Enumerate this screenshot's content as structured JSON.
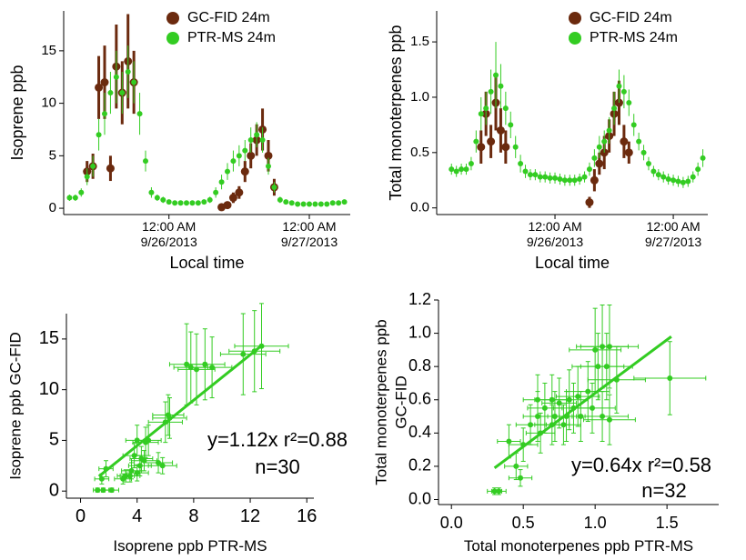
{
  "chart_data": [
    {
      "type": "scatter",
      "ylabel": "Isoprene ppb",
      "xlabel": "Local time",
      "xlim": [
        "2013-09-25T06:00",
        "2013-09-27T07:00"
      ],
      "xticks": [
        {
          "value": "2013-09-26T00:00",
          "label": [
            "12:00 AM",
            "9/26/2013"
          ]
        },
        {
          "value": "2013-09-27T00:00",
          "label": [
            "12:00 AM",
            "9/27/2013"
          ]
        }
      ],
      "ylim": [
        -0.6,
        18.8
      ],
      "yticks": [
        0,
        5,
        10,
        15
      ],
      "legend": "top-right",
      "series": [
        {
          "name": "GC-FID 24m",
          "color": "#6b2a0e",
          "x": [
            "2013-09-25T10:00",
            "2013-09-25T11:00",
            "2013-09-25T12:00",
            "2013-09-25T13:00",
            "2013-09-25T14:00",
            "2013-09-25T15:00",
            "2013-09-25T16:00",
            "2013-09-25T17:00",
            "2013-09-25T18:00",
            "2013-09-26T09:00",
            "2013-09-26T10:00",
            "2013-09-26T11:00",
            "2013-09-26T12:00",
            "2013-09-26T13:00",
            "2013-09-26T14:00",
            "2013-09-26T15:00",
            "2013-09-26T16:00",
            "2013-09-26T17:00",
            "2013-09-26T18:00"
          ],
          "values": [
            3.5,
            4.0,
            11.5,
            12.0,
            3.8,
            13.5,
            11.0,
            14.0,
            12.0,
            0.1,
            0.3,
            1.0,
            1.5,
            3.5,
            5.0,
            6.5,
            7.5,
            5.0,
            2.0
          ],
          "errors": [
            1,
            1.2,
            3,
            3.5,
            1.2,
            4,
            3,
            4.5,
            3,
            0.2,
            0.3,
            0.5,
            0.6,
            1,
            1.2,
            1.5,
            2,
            1.5,
            0.8
          ]
        },
        {
          "name": "PTR-MS 24m",
          "color": "#33cc22",
          "x": [
            "2013-09-25T07:00",
            "2013-09-25T08:00",
            "2013-09-25T09:00",
            "2013-09-25T10:00",
            "2013-09-25T11:00",
            "2013-09-25T12:00",
            "2013-09-25T13:00",
            "2013-09-25T14:00",
            "2013-09-25T15:00",
            "2013-09-25T16:00",
            "2013-09-25T17:00",
            "2013-09-25T18:00",
            "2013-09-25T19:00",
            "2013-09-25T20:00",
            "2013-09-25T21:00",
            "2013-09-25T22:00",
            "2013-09-25T23:00",
            "2013-09-26T00:00",
            "2013-09-26T01:00",
            "2013-09-26T02:00",
            "2013-09-26T03:00",
            "2013-09-26T04:00",
            "2013-09-26T05:00",
            "2013-09-26T06:00",
            "2013-09-26T07:00",
            "2013-09-26T08:00",
            "2013-09-26T09:00",
            "2013-09-26T10:00",
            "2013-09-26T11:00",
            "2013-09-26T12:00",
            "2013-09-26T13:00",
            "2013-09-26T14:00",
            "2013-09-26T15:00",
            "2013-09-26T16:00",
            "2013-09-26T17:00",
            "2013-09-26T18:00",
            "2013-09-26T19:00",
            "2013-09-26T20:00",
            "2013-09-26T21:00",
            "2013-09-26T22:00",
            "2013-09-26T23:00",
            "2013-09-27T00:00",
            "2013-09-27T01:00",
            "2013-09-27T02:00",
            "2013-09-27T03:00",
            "2013-09-27T04:00",
            "2013-09-27T05:00",
            "2013-09-27T06:00"
          ],
          "values": [
            1.0,
            1.0,
            1.5,
            3.0,
            4,
            7,
            9,
            11,
            12.5,
            11,
            13,
            12,
            9,
            4.5,
            1.5,
            1.0,
            0.8,
            0.6,
            0.5,
            0.5,
            0.5,
            0.5,
            0.5,
            0.6,
            0.8,
            1.5,
            2.5,
            3.5,
            4.5,
            5,
            5.5,
            6.5,
            7.0,
            6.5,
            4.0,
            2.0,
            0.8,
            0.6,
            0.5,
            0.4,
            0.4,
            0.4,
            0.4,
            0.4,
            0.4,
            0.5,
            0.5,
            0.6
          ],
          "errors": [
            0.3,
            0.3,
            0.4,
            0.8,
            1,
            1.5,
            2,
            2,
            2.5,
            2,
            2.5,
            2,
            2,
            1,
            0.5,
            0.3,
            0.3,
            0.2,
            0.2,
            0.2,
            0.2,
            0.2,
            0.2,
            0.2,
            0.3,
            0.5,
            0.7,
            0.8,
            1,
            1,
            1,
            1.2,
            1.2,
            1.2,
            0.8,
            0.5,
            0.3,
            0.2,
            0.2,
            0.2,
            0.2,
            0.2,
            0.2,
            0.2,
            0.2,
            0.2,
            0.2,
            0.2
          ]
        }
      ]
    },
    {
      "type": "scatter",
      "ylabel": "Total monoterpenes ppb",
      "xlabel": "Local time",
      "xlim": [
        "2013-09-25T00:00",
        "2013-09-27T07:00"
      ],
      "xticks": [
        {
          "value": "2013-09-26T00:00",
          "label": [
            "12:00 AM",
            "9/26/2013"
          ]
        },
        {
          "value": "2013-09-27T00:00",
          "label": [
            "12:00 AM",
            "9/27/2013"
          ]
        }
      ],
      "ylim": [
        -0.06,
        1.78
      ],
      "yticks": [
        {
          "value": 0,
          "label": "0.0"
        },
        0.5,
        {
          "value": 1,
          "label": "1.0"
        },
        1.5
      ],
      "legend": "top-right",
      "series": [
        {
          "name": "GC-FID 24m",
          "color": "#6b2a0e",
          "x": [
            "2013-09-25T09:00",
            "2013-09-25T10:00",
            "2013-09-25T11:00",
            "2013-09-25T12:00",
            "2013-09-25T13:00",
            "2013-09-25T14:00",
            "2013-09-26T07:00",
            "2013-09-26T08:00",
            "2013-09-26T09:00",
            "2013-09-26T10:00",
            "2013-09-26T11:00",
            "2013-09-26T12:00",
            "2013-09-26T13:00",
            "2013-09-26T14:00",
            "2013-09-26T15:00"
          ],
          "values": [
            0.55,
            0.85,
            0.6,
            0.95,
            0.7,
            0.55,
            0.05,
            0.25,
            0.4,
            0.5,
            0.65,
            0.85,
            0.95,
            0.6,
            0.5
          ],
          "errors": [
            0.15,
            0.2,
            0.15,
            0.25,
            0.2,
            0.15,
            0.05,
            0.1,
            0.1,
            0.15,
            0.15,
            0.2,
            0.2,
            0.15,
            0.1
          ]
        },
        {
          "name": "PTR-MS 24m",
          "color": "#33cc22",
          "x": [
            "2013-09-25T03:00",
            "2013-09-25T04:00",
            "2013-09-25T05:00",
            "2013-09-25T06:00",
            "2013-09-25T07:00",
            "2013-09-25T08:00",
            "2013-09-25T09:00",
            "2013-09-25T10:00",
            "2013-09-25T11:00",
            "2013-09-25T12:00",
            "2013-09-25T13:00",
            "2013-09-25T14:00",
            "2013-09-25T15:00",
            "2013-09-25T16:00",
            "2013-09-25T17:00",
            "2013-09-25T18:00",
            "2013-09-25T19:00",
            "2013-09-25T20:00",
            "2013-09-25T21:00",
            "2013-09-25T22:00",
            "2013-09-25T23:00",
            "2013-09-26T00:00",
            "2013-09-26T01:00",
            "2013-09-26T02:00",
            "2013-09-26T03:00",
            "2013-09-26T04:00",
            "2013-09-26T05:00",
            "2013-09-26T06:00",
            "2013-09-26T07:00",
            "2013-09-26T08:00",
            "2013-09-26T09:00",
            "2013-09-26T10:00",
            "2013-09-26T11:00",
            "2013-09-26T12:00",
            "2013-09-26T13:00",
            "2013-09-26T14:00",
            "2013-09-26T15:00",
            "2013-09-26T16:00",
            "2013-09-26T17:00",
            "2013-09-26T18:00",
            "2013-09-26T19:00",
            "2013-09-26T20:00",
            "2013-09-26T21:00",
            "2013-09-26T22:00",
            "2013-09-26T23:00",
            "2013-09-27T00:00",
            "2013-09-27T01:00",
            "2013-09-27T02:00",
            "2013-09-27T03:00",
            "2013-09-27T04:00",
            "2013-09-27T05:00",
            "2013-09-27T06:00"
          ],
          "values": [
            0.35,
            0.33,
            0.35,
            0.35,
            0.4,
            0.6,
            0.85,
            0.9,
            1.05,
            1.2,
            1.1,
            0.9,
            0.75,
            0.55,
            0.4,
            0.33,
            0.3,
            0.3,
            0.28,
            0.28,
            0.27,
            0.27,
            0.26,
            0.25,
            0.25,
            0.25,
            0.26,
            0.28,
            0.35,
            0.45,
            0.55,
            0.6,
            0.7,
            0.9,
            1.1,
            1.05,
            0.95,
            0.75,
            0.6,
            0.5,
            0.4,
            0.33,
            0.3,
            0.28,
            0.26,
            0.25,
            0.24,
            0.23,
            0.24,
            0.28,
            0.35,
            0.45
          ],
          "errors": [
            0.05,
            0.05,
            0.05,
            0.05,
            0.06,
            0.1,
            0.15,
            0.15,
            0.2,
            0.3,
            0.2,
            0.15,
            0.12,
            0.1,
            0.08,
            0.06,
            0.05,
            0.05,
            0.05,
            0.05,
            0.05,
            0.05,
            0.05,
            0.05,
            0.05,
            0.05,
            0.05,
            0.05,
            0.06,
            0.08,
            0.1,
            0.1,
            0.12,
            0.15,
            0.15,
            0.15,
            0.12,
            0.1,
            0.08,
            0.07,
            0.06,
            0.05,
            0.05,
            0.05,
            0.05,
            0.05,
            0.05,
            0.05,
            0.05,
            0.05,
            0.06,
            0.08
          ]
        }
      ]
    },
    {
      "type": "scatter",
      "ylabel": "Isoprene ppb GC-FID",
      "xlabel": "Isoprene ppb PTR-MS",
      "xlim": [
        -1,
        16.5
      ],
      "xticks": [
        0,
        4,
        8,
        12,
        16
      ],
      "ylim": [
        -0.7,
        17.5
      ],
      "yticks": [
        0,
        5,
        10,
        15
      ],
      "annotations": [
        "y=1.12x r²=0.88",
        "n=30"
      ],
      "fit": {
        "x": [
          1.3,
          12.8
        ],
        "y": [
          1.46,
          14.34
        ]
      },
      "series": [
        {
          "color": "#33cc22",
          "x": [
            1.2,
            1.6,
            2.2,
            1.5,
            1.8,
            3.0,
            3.2,
            3.5,
            3.6,
            4.0,
            4.2,
            3.8,
            4.3,
            4.5,
            5.5,
            5.8,
            4.0,
            4.6,
            6.0,
            6.3,
            7.5,
            7.8,
            8.2,
            8.8,
            9.3,
            11.5,
            12.3,
            12.8,
            4.8,
            6.2
          ],
          "values": [
            0.1,
            0.1,
            0.1,
            1.2,
            2.2,
            1.2,
            1.5,
            1.5,
            2.0,
            1.8,
            2.5,
            3.5,
            3.2,
            3.0,
            2.8,
            2.5,
            5.0,
            4.8,
            6.8,
            7.2,
            12.5,
            12.2,
            12.0,
            12.5,
            12.2,
            13.5,
            13.8,
            14.3,
            5.0,
            7.5
          ],
          "errors": [
            0.2,
            0.2,
            0.2,
            0.5,
            0.8,
            0.5,
            0.6,
            0.6,
            0.8,
            0.8,
            1.0,
            1.2,
            1.2,
            1.0,
            1.0,
            0.8,
            1.5,
            1.5,
            2.0,
            2.0,
            4.0,
            3.5,
            3.5,
            3.5,
            3.0,
            4.0,
            4.0,
            4.2,
            1.5,
            2.0
          ],
          "x_errors": [
            0.3,
            0.4,
            0.5,
            0.5,
            0.5,
            0.6,
            0.6,
            0.7,
            0.7,
            0.8,
            0.8,
            0.8,
            0.8,
            0.9,
            1.0,
            1.0,
            0.8,
            0.9,
            1.2,
            1.2,
            1.2,
            1.2,
            1.3,
            1.4,
            1.4,
            1.6,
            1.8,
            1.9,
            0.9,
            1.1
          ]
        }
      ]
    },
    {
      "type": "scatter",
      "ylabel": [
        "Total monoterpenes ppb",
        "GC-FID"
      ],
      "xlabel": "Total monoterpenes ppb PTR-MS",
      "xlim": [
        -0.09,
        1.86
      ],
      "xticks": [
        {
          "value": 0,
          "label": "0.0"
        },
        0.5,
        {
          "value": 1,
          "label": "1.0"
        },
        1.5
      ],
      "ylim": [
        -0.03,
        1.2
      ],
      "yticks": [
        {
          "value": 0,
          "label": "0.0"
        },
        0.2,
        0.4,
        0.6,
        0.8,
        {
          "value": 1,
          "label": "1.0"
        },
        1.2
      ],
      "annotations": [
        "y=0.64x r²=0.58",
        "n=32"
      ],
      "fit": {
        "x": [
          0.3,
          1.53
        ],
        "y": [
          0.19,
          0.98
        ]
      },
      "series": [
        {
          "color": "#33cc22",
          "x": [
            0.3,
            0.33,
            0.4,
            0.45,
            0.48,
            0.5,
            0.55,
            0.6,
            0.62,
            0.65,
            0.7,
            0.72,
            0.75,
            0.78,
            0.8,
            0.82,
            0.85,
            0.9,
            0.95,
            1.0,
            1.05,
            1.1,
            1.08,
            1.02,
            1.15,
            0.98,
            1.1,
            1.05,
            0.88,
            0.7,
            1.52,
            0.6
          ],
          "values": [
            0.05,
            0.05,
            0.35,
            0.2,
            0.13,
            0.33,
            0.45,
            0.5,
            0.4,
            0.55,
            0.45,
            0.5,
            0.58,
            0.45,
            0.5,
            0.6,
            0.55,
            0.5,
            0.65,
            0.9,
            0.92,
            0.92,
            0.8,
            0.8,
            0.72,
            0.55,
            0.48,
            0.5,
            0.62,
            0.6,
            0.73,
            0.6
          ],
          "errors": [
            0.02,
            0.02,
            0.1,
            0.08,
            0.05,
            0.1,
            0.12,
            0.15,
            0.12,
            0.15,
            0.12,
            0.15,
            0.15,
            0.12,
            0.15,
            0.18,
            0.15,
            0.15,
            0.18,
            0.25,
            0.25,
            0.25,
            0.2,
            0.2,
            0.2,
            0.15,
            0.15,
            0.15,
            0.18,
            0.15,
            0.22,
            0.15
          ],
          "x_errors": [
            0.05,
            0.05,
            0.08,
            0.08,
            0.08,
            0.1,
            0.1,
            0.1,
            0.1,
            0.12,
            0.12,
            0.12,
            0.12,
            0.12,
            0.13,
            0.13,
            0.14,
            0.15,
            0.15,
            0.18,
            0.18,
            0.2,
            0.18,
            0.18,
            0.2,
            0.16,
            0.18,
            0.18,
            0.15,
            0.12,
            0.25,
            0.1
          ]
        }
      ]
    }
  ]
}
